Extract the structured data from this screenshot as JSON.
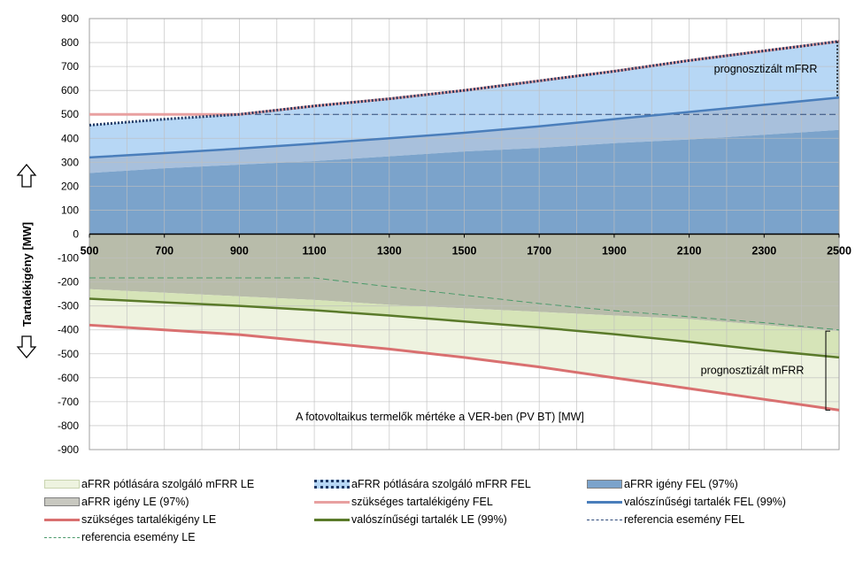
{
  "chart_data": {
    "type": "area",
    "xlabel": "A fotovoltaikus termelők mértéke a VER-ben (PV BT) [MW]",
    "ylabel": "Tartalékigény [MW]",
    "xlim": [
      500,
      2500
    ],
    "ylim": [
      -900,
      900
    ],
    "x_ticks": [
      "500",
      "700",
      "900",
      "1100",
      "1300",
      "1500",
      "1700",
      "1900",
      "2100",
      "2300",
      "2500"
    ],
    "y_ticks": [
      "900",
      "800",
      "700",
      "600",
      "500",
      "400",
      "300",
      "200",
      "100",
      "0",
      "-100",
      "-200",
      "-300",
      "-400",
      "-500",
      "-600",
      "-700",
      "-800",
      "-900"
    ],
    "grid": true,
    "x": [
      500,
      700,
      900,
      1100,
      1300,
      1500,
      1700,
      1900,
      2100,
      2300,
      2500
    ],
    "series": [
      {
        "key": "mfrr_le",
        "name": "aFRR pótlására szolgáló mFRR LE",
        "color": "#eef3e0",
        "values": [
          -380,
          -400,
          -420,
          -450,
          -480,
          -515,
          -555,
          -600,
          -645,
          -690,
          -735
        ]
      },
      {
        "key": "mfrr_fel",
        "name": "aFRR pótlására szolgáló mFRR FEL",
        "color": "#1f3864",
        "values": [
          455,
          480,
          500,
          535,
          565,
          600,
          640,
          680,
          725,
          765,
          805
        ]
      },
      {
        "key": "afrr_fel",
        "name": "aFRR igény FEL  (97%)",
        "color": "#7ba3cb",
        "values": [
          255,
          275,
          290,
          305,
          325,
          345,
          360,
          380,
          395,
          415,
          435
        ]
      },
      {
        "key": "afrr_le",
        "name": "aFRR igény LE  (97%)",
        "color": "#c8c8c0",
        "values": [
          -230,
          -245,
          -260,
          -275,
          -295,
          -310,
          -325,
          -340,
          -355,
          -380,
          -405
        ]
      },
      {
        "key": "szuks_fel",
        "name": "szükséges tartalékigény FEL",
        "color": "#e8a0a0",
        "values": [
          500,
          500,
          500,
          535,
          565,
          600,
          640,
          680,
          725,
          765,
          805
        ]
      },
      {
        "key": "valsz_fel",
        "name": "valószínűségi tartalék FEL (99%)",
        "color": "#4a7ebb",
        "values": [
          320,
          338,
          357,
          378,
          400,
          423,
          450,
          480,
          510,
          540,
          570
        ]
      },
      {
        "key": "szuks_le",
        "name": "szükséges tartalékigény LE",
        "color": "#d97070",
        "values": [
          -380,
          -400,
          -420,
          -450,
          -480,
          -515,
          -555,
          -600,
          -645,
          -690,
          -735
        ]
      },
      {
        "key": "valsz_le",
        "name": "valószínűségi tartalék LE (99%)",
        "color": "#5a7a2a",
        "values": [
          -270,
          -285,
          -300,
          -318,
          -340,
          -365,
          -390,
          -418,
          -450,
          -485,
          -515
        ]
      },
      {
        "key": "ref_fel",
        "name": "referencia esemény FEL",
        "color": "#2e4a7a",
        "values": [
          500,
          500,
          500,
          500,
          500,
          500,
          500,
          500,
          500,
          500,
          500
        ]
      },
      {
        "key": "ref_le",
        "name": "referencia esemény LE",
        "color": "#4a9a6a",
        "values": [
          -183,
          -183,
          -183,
          -183,
          -220,
          -255,
          -290,
          -320,
          -345,
          -370,
          -400
        ]
      }
    ],
    "annotations": [
      {
        "key": "mfrr_fel_ann",
        "text": "prognosztizált mFRR",
        "x": 2500,
        "y_range": [
          570,
          805
        ]
      },
      {
        "key": "mfrr_le_ann",
        "text": "prognosztizált mFRR",
        "x": 2500,
        "y_range": [
          -735,
          -405
        ]
      }
    ]
  }
}
